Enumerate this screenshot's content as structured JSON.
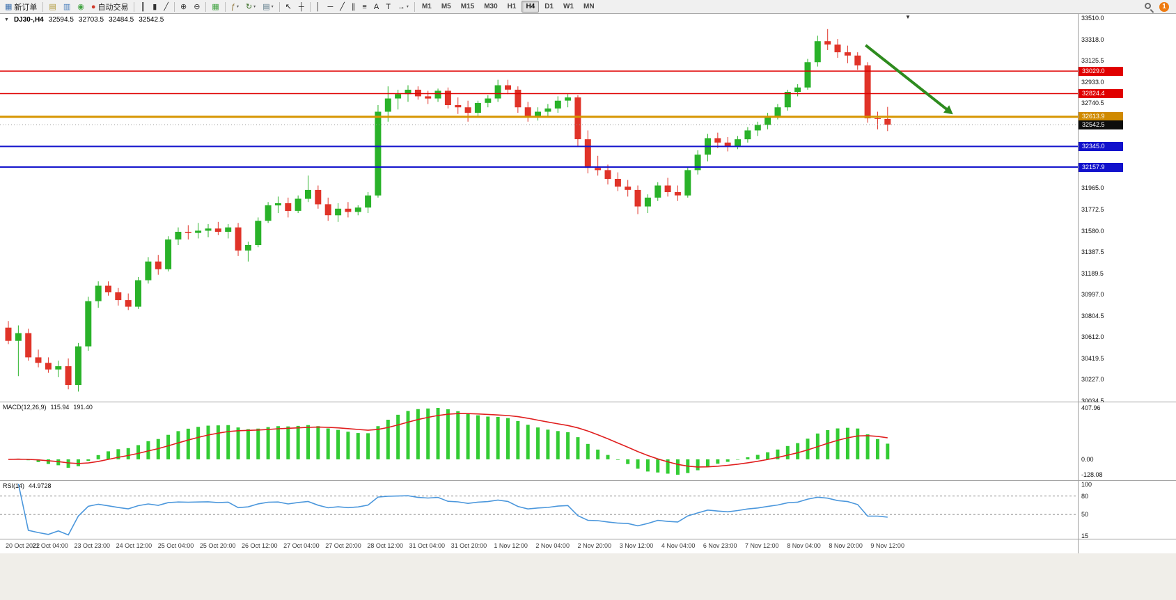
{
  "toolbar": {
    "items": [
      {
        "t": "btn",
        "name": "new-order-button",
        "icon": "new-order-icon",
        "glyph": "▦",
        "gc": "#3b6fae",
        "label": "新订单"
      },
      {
        "t": "sep"
      },
      {
        "t": "btn",
        "name": "chart-window-button",
        "icon": "chart-window-icon",
        "glyph": "▤",
        "gc": "#b09a3e"
      },
      {
        "t": "btn",
        "name": "market-watch-button",
        "icon": "market-watch-icon",
        "glyph": "▥",
        "gc": "#4a7ebb"
      },
      {
        "t": "btn",
        "name": "alerts-button",
        "icon": "alerts-icon",
        "glyph": "◉",
        "gc": "#3fa23f"
      },
      {
        "t": "btn",
        "name": "autotrading-button",
        "icon": "autotrading-icon",
        "glyph": "●",
        "gc": "#d03a2a",
        "label": "自动交易"
      },
      {
        "t": "sep"
      },
      {
        "t": "btn",
        "name": "bars-chart-button",
        "icon": "bars-chart-icon",
        "glyph": "║",
        "gc": "#333333"
      },
      {
        "t": "btn",
        "name": "candles-chart-button",
        "icon": "candles-chart-icon",
        "glyph": "▮",
        "gc": "#333333"
      },
      {
        "t": "btn",
        "name": "line-chart-button",
        "icon": "line-chart-icon",
        "glyph": "╱",
        "gc": "#333333"
      },
      {
        "t": "sep"
      },
      {
        "t": "btn",
        "name": "zoom-in-button",
        "icon": "zoom-in-icon",
        "glyph": "⊕",
        "gc": "#333333"
      },
      {
        "t": "btn",
        "name": "zoom-out-button",
        "icon": "zoom-out-icon",
        "glyph": "⊖",
        "gc": "#333333"
      },
      {
        "t": "sep"
      },
      {
        "t": "btn",
        "name": "tile-windows-button",
        "icon": "tile-windows-icon",
        "glyph": "▦",
        "gc": "#3fa23f"
      },
      {
        "t": "sep"
      },
      {
        "t": "btn",
        "name": "indicators-button",
        "icon": "indicators-icon",
        "glyph": "ƒ",
        "gc": "#8a6d2f",
        "dd": true
      },
      {
        "t": "btn",
        "name": "cycles-button",
        "icon": "cycles-icon",
        "glyph": "↻",
        "gc": "#33691e",
        "dd": true
      },
      {
        "t": "btn",
        "name": "templates-button",
        "icon": "templates-icon",
        "glyph": "▤",
        "gc": "#607d8b",
        "dd": true
      },
      {
        "t": "sep"
      },
      {
        "t": "btn",
        "name": "cursor-tool",
        "icon": "cursor-icon",
        "glyph": "↖",
        "gc": "#222222"
      },
      {
        "t": "btn",
        "name": "crosshair-tool",
        "icon": "crosshair-icon",
        "glyph": "┼",
        "gc": "#222222"
      },
      {
        "t": "sep"
      },
      {
        "t": "btn",
        "name": "vertical-line-tool",
        "icon": "vertical-line-icon",
        "glyph": "│",
        "gc": "#222222"
      },
      {
        "t": "btn",
        "name": "horizontal-line-tool",
        "icon": "horizontal-line-icon",
        "glyph": "─",
        "gc": "#222222"
      },
      {
        "t": "btn",
        "name": "trendline-tool",
        "icon": "trendline-icon",
        "glyph": "╱",
        "gc": "#222222"
      },
      {
        "t": "btn",
        "name": "channel-tool",
        "icon": "channel-icon",
        "glyph": "∥",
        "gc": "#222222"
      },
      {
        "t": "btn",
        "name": "fibonacci-tool",
        "icon": "fibonacci-icon",
        "glyph": "≡",
        "gc": "#222222"
      },
      {
        "t": "btn",
        "name": "text-tool",
        "icon": "text-icon",
        "glyph": "A",
        "gc": "#222222"
      },
      {
        "t": "btn",
        "name": "label-tool",
        "icon": "label-icon",
        "glyph": "T",
        "gc": "#222222"
      },
      {
        "t": "btn",
        "name": "arrows-tool",
        "icon": "arrows-icon",
        "glyph": "→",
        "gc": "#222222",
        "dd": true
      },
      {
        "t": "sep"
      }
    ],
    "timeframes": [
      "M1",
      "M5",
      "M15",
      "M30",
      "H1",
      "H4",
      "D1",
      "W1",
      "MN"
    ],
    "active_timeframe": "H4",
    "right": {
      "badge": "1"
    }
  },
  "chart": {
    "header": {
      "collapse_icon": "▼",
      "symbol_period": "DJ30-,H4"
    },
    "shift_marker": "▼",
    "price_axis_labels": [
      "33510.0",
      "33318.0",
      "33125.5",
      "32933.0",
      "32740.5",
      "32548.0",
      "32355.5",
      "32163.0",
      "31965.0",
      "31772.5",
      "31580.0",
      "31387.5",
      "31189.5",
      "30997.0",
      "30804.5",
      "30612.0",
      "30419.5",
      "30227.0",
      "30034.5"
    ],
    "price_tags": [
      {
        "text": "33029.0",
        "price": 33029.0,
        "bg": "#e00000"
      },
      {
        "text": "32824.4",
        "price": 32824.4,
        "bg": "#e00000"
      },
      {
        "text": "32613.9",
        "price": 32613.9,
        "bg": "#d08a00"
      },
      {
        "text": "32542.5",
        "price": 32542.5,
        "bg": "#0d0d0d"
      },
      {
        "text": "32345.0",
        "price": 32345.0,
        "bg": "#1212cc"
      },
      {
        "text": "32157.9",
        "price": 32157.9,
        "bg": "#1212cc"
      }
    ],
    "time_axis_labels": [
      "20 Oct 2022",
      "21 Oct 04:00",
      "23 Oct 23:00",
      "24 Oct 12:00",
      "25 Oct 04:00",
      "25 Oct 20:00",
      "26 Oct 12:00",
      "27 Oct 04:00",
      "27 Oct 20:00",
      "28 Oct 12:00",
      "31 Oct 04:00",
      "31 Oct 20:00",
      "1 Nov 12:00",
      "2 Nov 04:00",
      "2 Nov 20:00",
      "3 Nov 12:00",
      "4 Nov 04:00",
      "6 Nov 23:00",
      "7 Nov 12:00",
      "8 Nov 04:00",
      "8 Nov 20:00",
      "9 Nov 12:00"
    ]
  },
  "chart_data": {
    "type": "candlestick",
    "symbol": "DJ30-",
    "timeframe": "H4",
    "current_bar": {
      "open": 32594.5,
      "high": 32703.5,
      "low": 32484.5,
      "close": 32542.5
    },
    "price_range": {
      "top": 33510.0,
      "bottom": 30034.5
    },
    "colors": {
      "up": "#29b229",
      "down": "#e03328"
    },
    "candles": [
      [
        30700,
        30760,
        30550,
        30580
      ],
      [
        30580,
        30720,
        30260,
        30650
      ],
      [
        30650,
        30690,
        30400,
        30430
      ],
      [
        30430,
        30500,
        30340,
        30380
      ],
      [
        30380,
        30430,
        30290,
        30320
      ],
      [
        30320,
        30400,
        30250,
        30350
      ],
      [
        30350,
        30420,
        30140,
        30180
      ],
      [
        30180,
        30560,
        30120,
        30530
      ],
      [
        30530,
        30980,
        30490,
        30940
      ],
      [
        30940,
        31120,
        30880,
        31080
      ],
      [
        31080,
        31120,
        30990,
        31020
      ],
      [
        31020,
        31060,
        30900,
        30950
      ],
      [
        30950,
        31010,
        30860,
        30890
      ],
      [
        30890,
        31160,
        30870,
        31130
      ],
      [
        31130,
        31340,
        31100,
        31300
      ],
      [
        31300,
        31360,
        31180,
        31230
      ],
      [
        31230,
        31530,
        31210,
        31500
      ],
      [
        31500,
        31610,
        31450,
        31570
      ],
      [
        31570,
        31630,
        31500,
        31560
      ],
      [
        31560,
        31650,
        31510,
        31580
      ],
      [
        31580,
        31640,
        31520,
        31600
      ],
      [
        31600,
        31660,
        31540,
        31570
      ],
      [
        31570,
        31640,
        31510,
        31610
      ],
      [
        31610,
        31650,
        31350,
        31400
      ],
      [
        31400,
        31480,
        31300,
        31450
      ],
      [
        31450,
        31700,
        31430,
        31670
      ],
      [
        31670,
        31840,
        31650,
        31810
      ],
      [
        31810,
        31890,
        31740,
        31830
      ],
      [
        31830,
        31880,
        31700,
        31760
      ],
      [
        31760,
        31900,
        31740,
        31870
      ],
      [
        31870,
        32080,
        31840,
        31950
      ],
      [
        31950,
        31990,
        31780,
        31820
      ],
      [
        31820,
        31880,
        31670,
        31720
      ],
      [
        31720,
        31830,
        31660,
        31780
      ],
      [
        31780,
        31840,
        31700,
        31750
      ],
      [
        31750,
        31810,
        31720,
        31790
      ],
      [
        31790,
        31930,
        31740,
        31900
      ],
      [
        31900,
        32720,
        31880,
        32660
      ],
      [
        32660,
        32890,
        32570,
        32780
      ],
      [
        32780,
        32860,
        32680,
        32820
      ],
      [
        32820,
        32900,
        32750,
        32860
      ],
      [
        32860,
        32890,
        32770,
        32800
      ],
      [
        32800,
        32850,
        32730,
        32780
      ],
      [
        32780,
        32870,
        32750,
        32850
      ],
      [
        32850,
        32880,
        32690,
        32720
      ],
      [
        32720,
        32790,
        32640,
        32700
      ],
      [
        32700,
        32760,
        32570,
        32650
      ],
      [
        32650,
        32760,
        32620,
        32740
      ],
      [
        32740,
        32810,
        32700,
        32780
      ],
      [
        32780,
        32950,
        32750,
        32900
      ],
      [
        32900,
        32950,
        32820,
        32860
      ],
      [
        32860,
        32890,
        32650,
        32700
      ],
      [
        32700,
        32750,
        32570,
        32610
      ],
      [
        32610,
        32700,
        32580,
        32660
      ],
      [
        32660,
        32730,
        32620,
        32690
      ],
      [
        32690,
        32800,
        32650,
        32760
      ],
      [
        32760,
        32820,
        32700,
        32790
      ],
      [
        32790,
        32810,
        32340,
        32410
      ],
      [
        32410,
        32490,
        32100,
        32150
      ],
      [
        32150,
        32260,
        32080,
        32130
      ],
      [
        32130,
        32180,
        32000,
        32050
      ],
      [
        32050,
        32110,
        31940,
        31980
      ],
      [
        31980,
        32040,
        31890,
        31950
      ],
      [
        31950,
        31990,
        31730,
        31800
      ],
      [
        31800,
        31910,
        31740,
        31880
      ],
      [
        31880,
        32020,
        31850,
        31990
      ],
      [
        31990,
        32060,
        31890,
        31930
      ],
      [
        31930,
        31990,
        31850,
        31900
      ],
      [
        31900,
        32160,
        31880,
        32130
      ],
      [
        32130,
        32310,
        32090,
        32270
      ],
      [
        32270,
        32460,
        32210,
        32420
      ],
      [
        32420,
        32470,
        32330,
        32380
      ],
      [
        32380,
        32430,
        32300,
        32350
      ],
      [
        32350,
        32440,
        32320,
        32410
      ],
      [
        32410,
        32520,
        32380,
        32490
      ],
      [
        32490,
        32570,
        32440,
        32540
      ],
      [
        32540,
        32650,
        32500,
        32620
      ],
      [
        32620,
        32730,
        32590,
        32700
      ],
      [
        32700,
        32860,
        32670,
        32840
      ],
      [
        32840,
        32910,
        32800,
        32880
      ],
      [
        32880,
        33140,
        32860,
        33110
      ],
      [
        33110,
        33350,
        33070,
        33300
      ],
      [
        33300,
        33410,
        33220,
        33270
      ],
      [
        33270,
        33320,
        33150,
        33200
      ],
      [
        33200,
        33260,
        33100,
        33170
      ],
      [
        33170,
        33200,
        33040,
        33080
      ],
      [
        33080,
        33110,
        32560,
        32600
      ],
      [
        32600,
        32660,
        32500,
        32595
      ],
      [
        32594.5,
        32703.5,
        32484.5,
        32542.5
      ]
    ],
    "overlays": {
      "hlines": [
        {
          "price": 33029.0,
          "color": "#e00000",
          "width": 1.5
        },
        {
          "price": 32824.4,
          "color": "#e00000",
          "width": 1.5
        },
        {
          "price": 32613.9,
          "color": "#d69500",
          "width": 3
        },
        {
          "price": 32542.5,
          "color": "#999999",
          "width": 1,
          "style": "dotted"
        },
        {
          "price": 32345.0,
          "color": "#1515cc",
          "width": 2
        },
        {
          "price": 32157.9,
          "color": "#1515cc",
          "width": 2
        }
      ],
      "trend_arrow": {
        "from": {
          "bar": 85.8,
          "price": 33264
        },
        "to": {
          "bar": 94,
          "price": 32676
        },
        "color": "#2e8b1e",
        "width": 4
      }
    },
    "indicators": {
      "macd": {
        "label": "MACD(12,26,9)",
        "value_main": "115.94",
        "value_signal": "191.40",
        "axis_top": "407.96",
        "axis_zero": "0.00",
        "axis_bottom": "-128.08",
        "histogram_color": "#33cc33",
        "signal_color": "#e01f1f"
      },
      "rsi": {
        "label": "RSI(14)",
        "value": "44.9728",
        "axis_labels": [
          "100",
          "80",
          "50",
          "15"
        ],
        "levels": [
          80,
          50
        ],
        "line_color": "#4b97dc"
      }
    }
  }
}
